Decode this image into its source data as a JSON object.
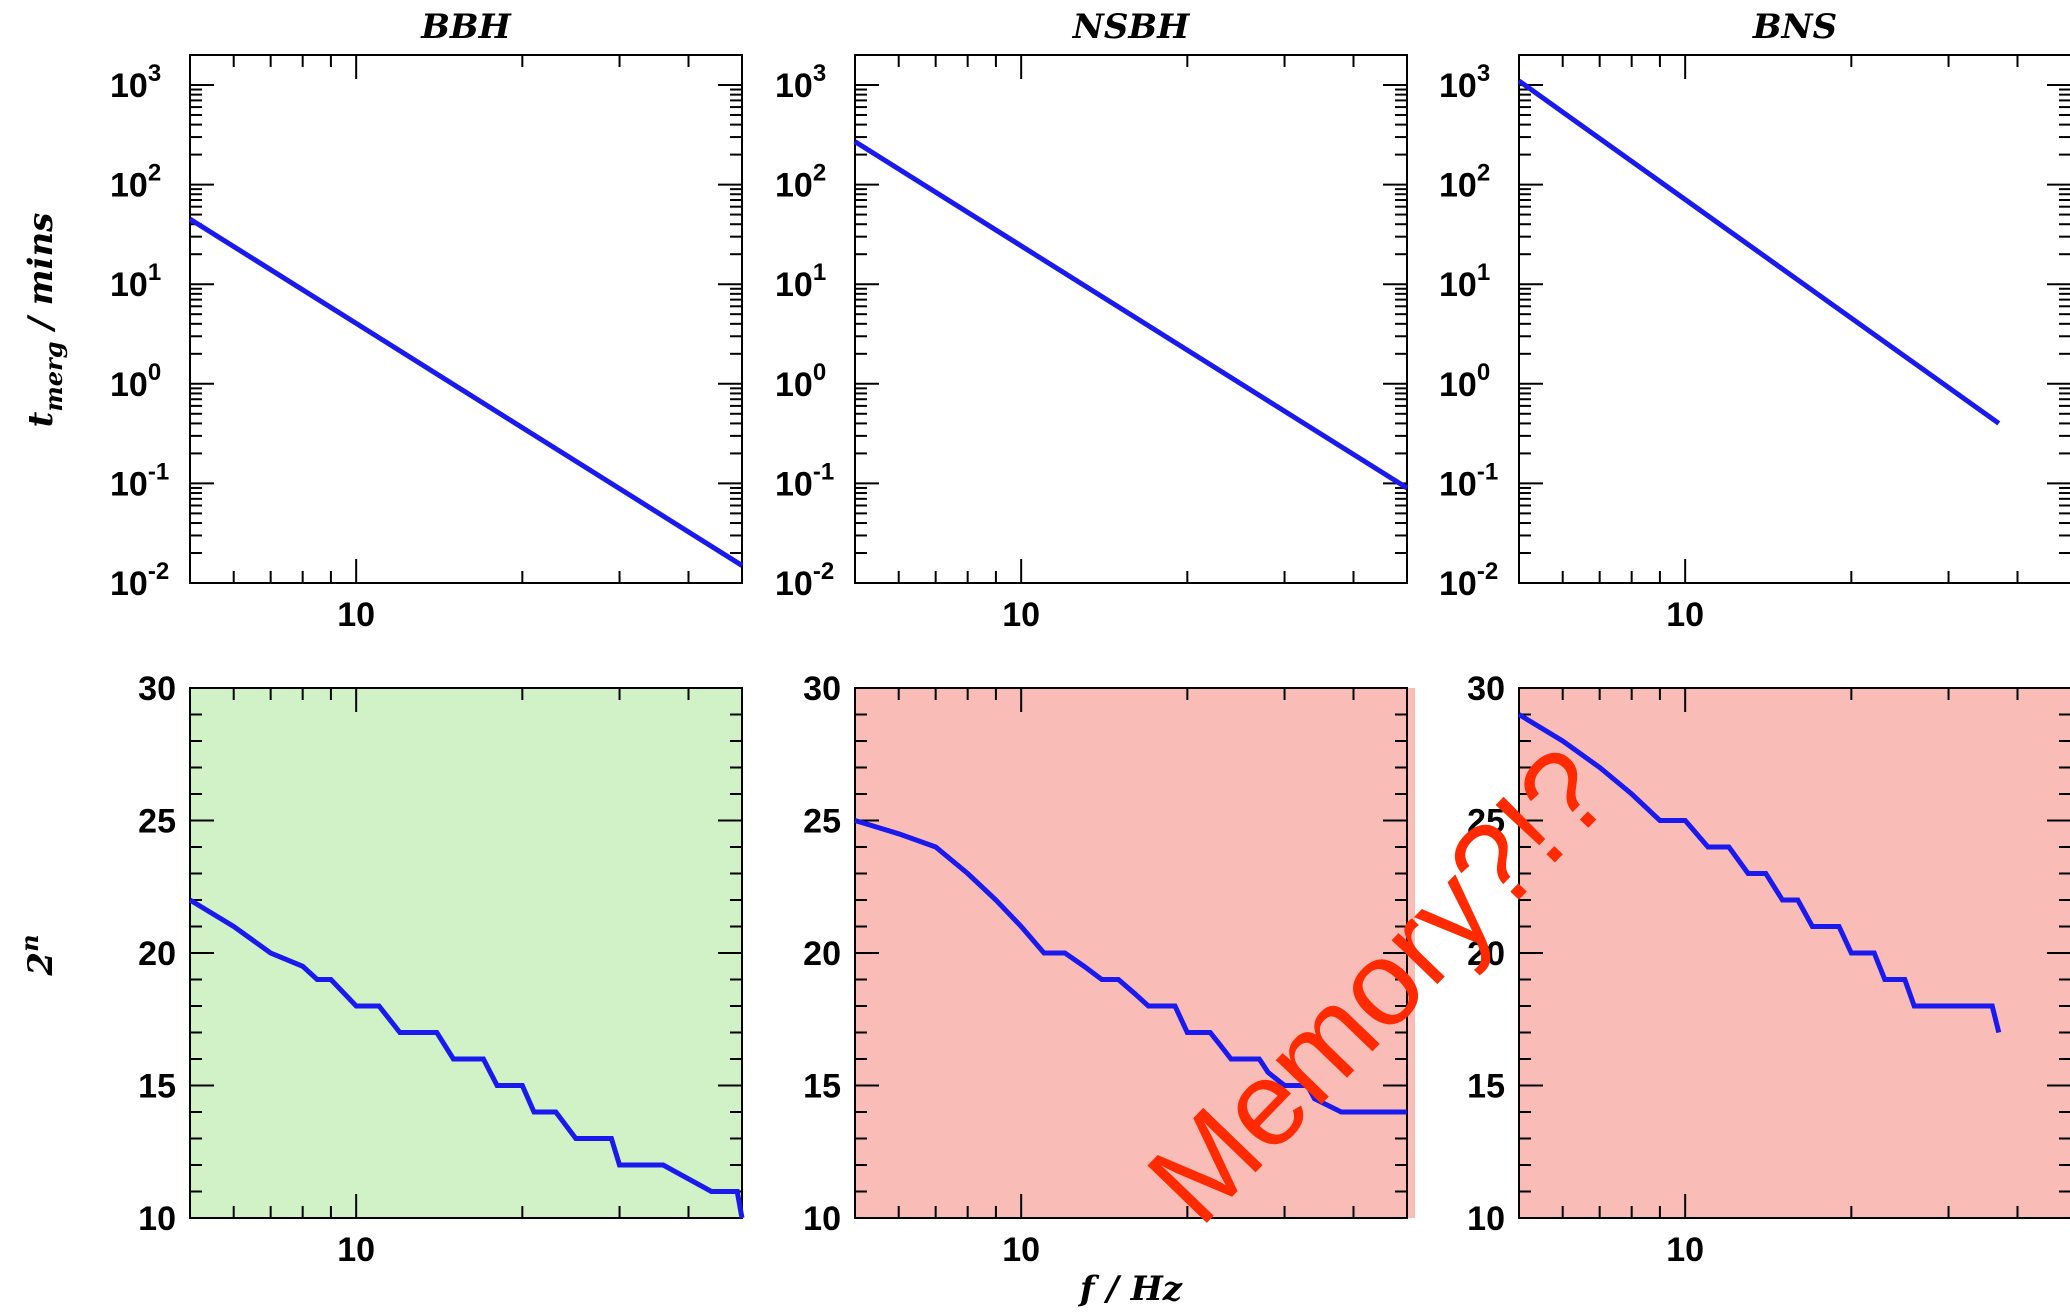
{
  "colors": {
    "line": "#1a1aee",
    "axis": "#000000",
    "bg_ok": "#d0f2c6",
    "bg_bad": "#f9bcb7",
    "annotation": "#ff2a00"
  },
  "figure": {
    "top_ylabel_main": "t",
    "top_ylabel_sub": "merg",
    "top_ylabel_rest": " / mins",
    "bottom_ylabel_main": "2",
    "bottom_ylabel_sup": "n",
    "bottom_xlabel": "f / Hz",
    "annotation": "Memory?!?"
  },
  "chart_data": [
    {
      "type": "line",
      "title": "BBH",
      "xlabel": "",
      "ylabel": "t_merg / mins",
      "x_scale": "log",
      "y_scale": "log",
      "xlim": [
        5,
        50
      ],
      "ylim": [
        0.01,
        2000
      ],
      "x_ticks": [
        10
      ],
      "x_tick_labels": [
        "10"
      ],
      "y_ticks": [
        0.01,
        0.1,
        1,
        10,
        100,
        1000
      ],
      "y_tick_labels": [
        {
          "base": "10",
          "exp": "-2"
        },
        {
          "base": "10",
          "exp": "-1"
        },
        {
          "base": "10",
          "exp": "0"
        },
        {
          "base": "10",
          "exp": "1"
        },
        {
          "base": "10",
          "exp": "2"
        },
        {
          "base": "10",
          "exp": "3"
        }
      ],
      "series": [
        {
          "x": [
            5,
            50
          ],
          "y": [
            45,
            0.015
          ]
        }
      ]
    },
    {
      "type": "line",
      "title": "NSBH",
      "xlabel": "",
      "ylabel": "",
      "x_scale": "log",
      "y_scale": "log",
      "xlim": [
        5,
        50
      ],
      "ylim": [
        0.01,
        2000
      ],
      "x_ticks": [
        10
      ],
      "x_tick_labels": [
        "10"
      ],
      "y_ticks": [
        0.01,
        0.1,
        1,
        10,
        100,
        1000
      ],
      "y_tick_labels": [
        {
          "base": "10",
          "exp": "-2"
        },
        {
          "base": "10",
          "exp": "-1"
        },
        {
          "base": "10",
          "exp": "0"
        },
        {
          "base": "10",
          "exp": "1"
        },
        {
          "base": "10",
          "exp": "2"
        },
        {
          "base": "10",
          "exp": "3"
        }
      ],
      "series": [
        {
          "x": [
            5,
            50
          ],
          "y": [
            270,
            0.09
          ]
        }
      ]
    },
    {
      "type": "line",
      "title": "BNS",
      "xlabel": "",
      "ylabel": "",
      "x_scale": "log",
      "y_scale": "log",
      "xlim": [
        5,
        50
      ],
      "ylim": [
        0.01,
        2000
      ],
      "x_ticks": [
        10
      ],
      "x_tick_labels": [
        "10"
      ],
      "y_ticks": [
        0.01,
        0.1,
        1,
        10,
        100,
        1000
      ],
      "y_tick_labels": [
        {
          "base": "10",
          "exp": "-2"
        },
        {
          "base": "10",
          "exp": "-1"
        },
        {
          "base": "10",
          "exp": "0"
        },
        {
          "base": "10",
          "exp": "1"
        },
        {
          "base": "10",
          "exp": "2"
        },
        {
          "base": "10",
          "exp": "3"
        }
      ],
      "series": [
        {
          "x": [
            5,
            37
          ],
          "y": [
            1100,
            0.4
          ]
        }
      ]
    },
    {
      "type": "line",
      "title": "",
      "xlabel": "",
      "ylabel": "2^n",
      "x_scale": "log",
      "y_scale": "linear",
      "xlim": [
        5,
        50
      ],
      "ylim": [
        10,
        30
      ],
      "x_ticks": [
        10
      ],
      "x_tick_labels": [
        "10"
      ],
      "y_ticks": [
        10,
        15,
        20,
        25,
        30
      ],
      "y_tick_labels": [
        "10",
        "15",
        "20",
        "25",
        "30"
      ],
      "series": [
        {
          "x": [
            5,
            6,
            7,
            8,
            8.5,
            9,
            10,
            10.5,
            11,
            12,
            13,
            14,
            15,
            16,
            17,
            18,
            19,
            20,
            21,
            22,
            23,
            25,
            26,
            29,
            30,
            35,
            36,
            44,
            45,
            49,
            50
          ],
          "y": [
            22,
            21,
            20,
            19.5,
            19,
            19,
            18,
            18,
            18,
            17,
            17,
            17,
            16,
            16,
            16,
            15,
            15,
            15,
            14,
            14,
            14,
            13,
            13,
            13,
            12,
            12,
            12,
            11,
            11,
            11,
            10
          ]
        }
      ]
    },
    {
      "type": "line",
      "title": "",
      "xlabel": "f / Hz",
      "ylabel": "",
      "x_scale": "log",
      "y_scale": "linear",
      "xlim": [
        5,
        50
      ],
      "ylim": [
        10,
        30
      ],
      "x_ticks": [
        10
      ],
      "x_tick_labels": [
        "10"
      ],
      "y_ticks": [
        10,
        15,
        20,
        25,
        30
      ],
      "y_tick_labels": [
        "10",
        "15",
        "20",
        "25",
        "30"
      ],
      "series": [
        {
          "x": [
            5,
            6,
            7,
            8,
            9,
            10,
            11,
            12,
            13,
            14,
            15,
            16,
            17,
            18,
            19,
            20,
            21,
            22,
            23,
            24,
            25,
            27,
            28,
            30,
            31,
            33,
            34,
            38,
            39,
            43,
            44,
            50
          ],
          "y": [
            25,
            24.5,
            24,
            23,
            22,
            21,
            20,
            20,
            19.5,
            19,
            19,
            18.5,
            18,
            18,
            18,
            17,
            17,
            17,
            16.5,
            16,
            16,
            16,
            15.5,
            15,
            15,
            15,
            14.5,
            14,
            14,
            14,
            14,
            14
          ]
        }
      ]
    },
    {
      "type": "line",
      "title": "",
      "xlabel": "",
      "ylabel": "",
      "x_scale": "log",
      "y_scale": "linear",
      "xlim": [
        5,
        50
      ],
      "ylim": [
        10,
        30
      ],
      "x_ticks": [
        10
      ],
      "x_tick_labels": [
        "10"
      ],
      "y_ticks": [
        10,
        15,
        20,
        25,
        30
      ],
      "y_tick_labels": [
        "10",
        "15",
        "20",
        "25",
        "30"
      ],
      "series": [
        {
          "x": [
            5,
            6,
            7,
            8,
            9,
            10,
            11,
            12,
            13,
            14,
            15,
            16,
            17,
            18,
            19,
            20,
            21,
            22,
            23,
            24,
            25,
            26,
            27,
            28,
            30,
            31,
            33,
            34,
            36,
            37
          ],
          "y": [
            29,
            28,
            27,
            26,
            25,
            25,
            24,
            24,
            23,
            23,
            22,
            22,
            21,
            21,
            21,
            20,
            20,
            20,
            19,
            19,
            19,
            18,
            18,
            18,
            18,
            18,
            18,
            18,
            18,
            17
          ]
        }
      ]
    }
  ]
}
